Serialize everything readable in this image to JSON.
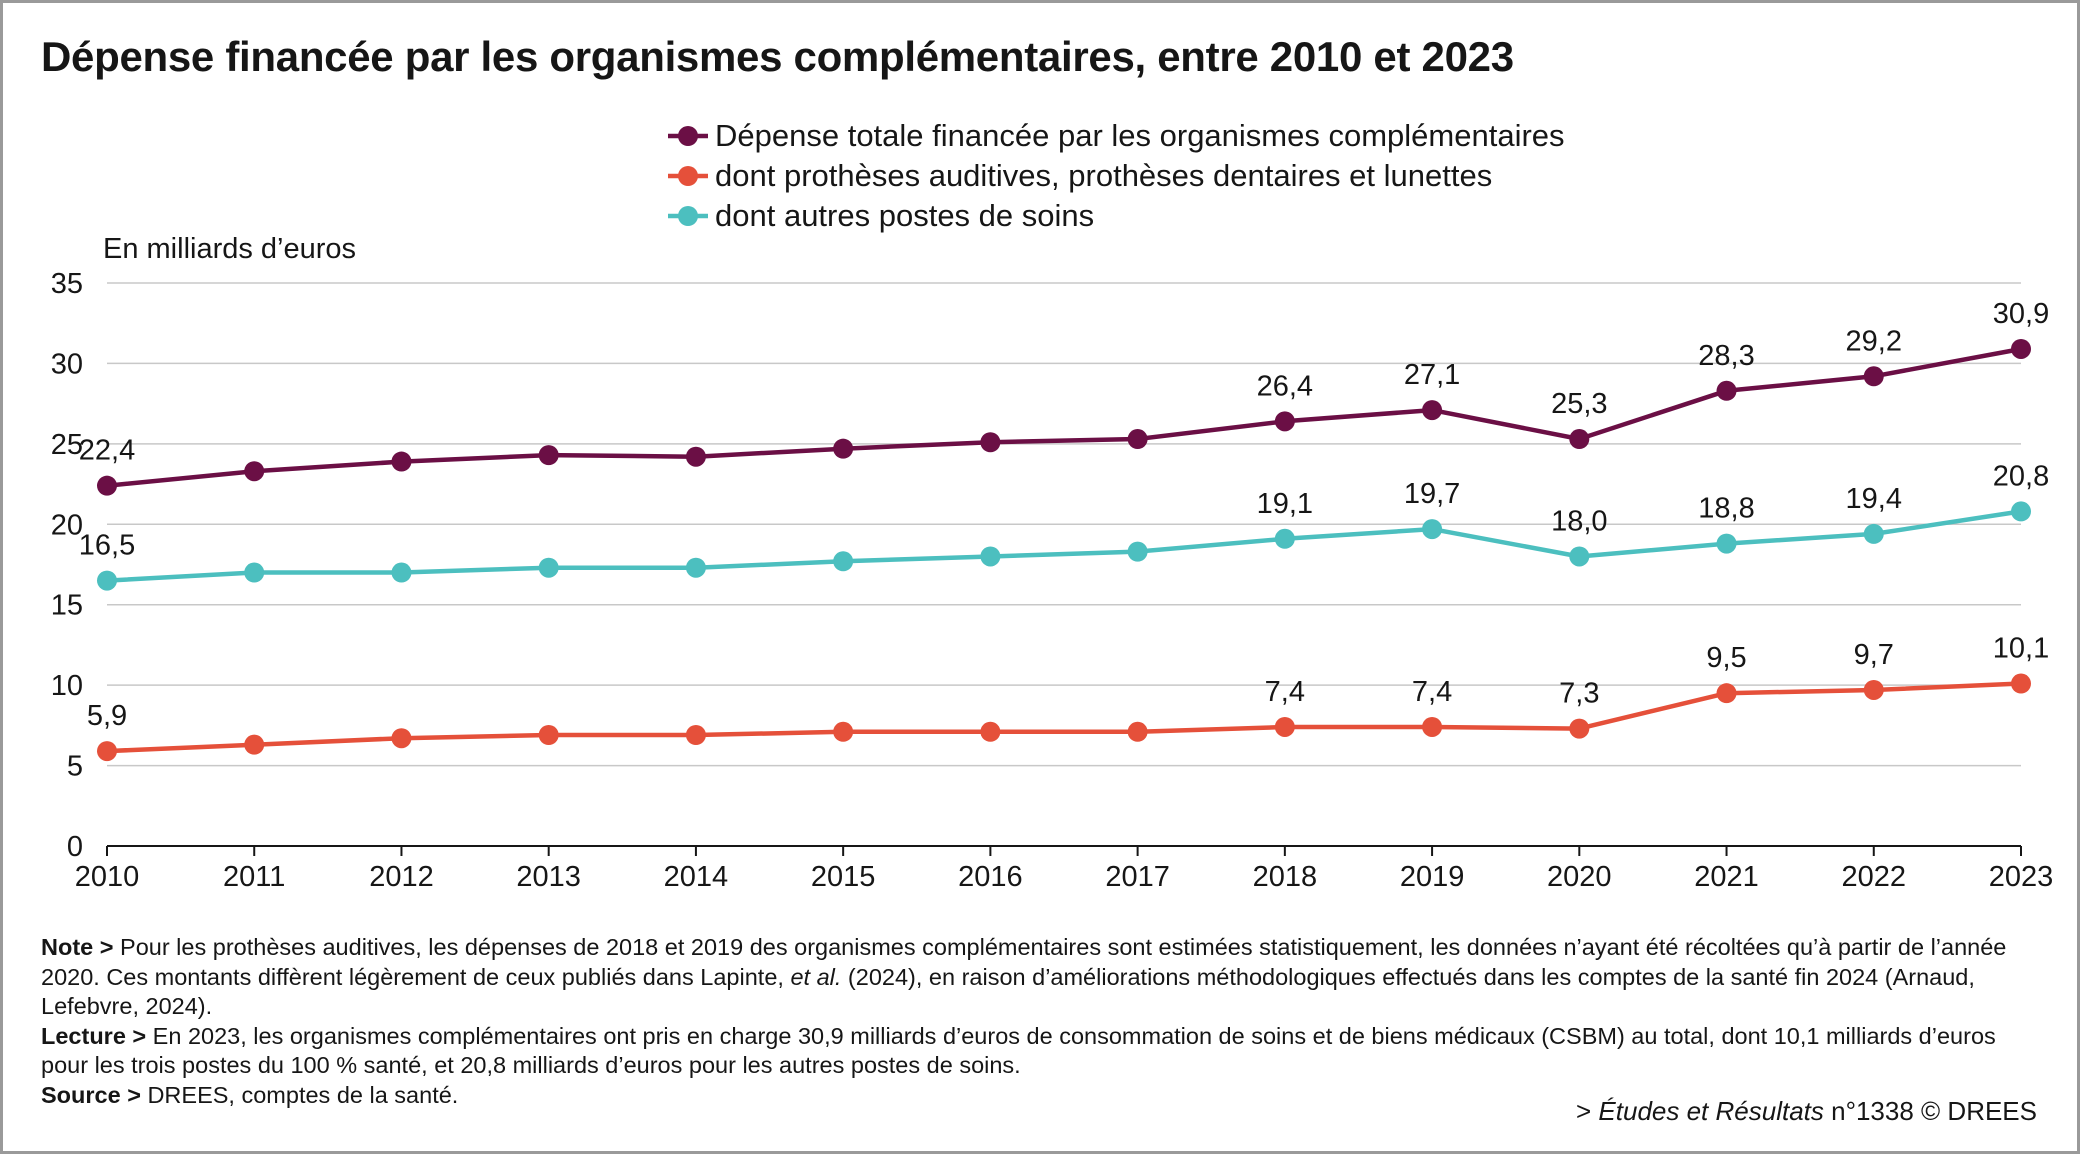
{
  "title": "Dépense financée par les organismes complémentaires, entre 2010 et 2023",
  "chart_data": {
    "type": "line",
    "title": "Dépense financée par les organismes complémentaires, entre 2010 et 2023",
    "ylabel": "En milliards d’euros",
    "xlabel": "",
    "ylim": [
      0,
      35
    ],
    "yticks": [
      0,
      5,
      10,
      15,
      20,
      25,
      30,
      35
    ],
    "grid": true,
    "legend_position": "top",
    "x": [
      "2010",
      "2011",
      "2012",
      "2013",
      "2014",
      "2015",
      "2016",
      "2017",
      "2018",
      "2019",
      "2020",
      "2021",
      "2022",
      "2023"
    ],
    "series": [
      {
        "name": "Dépense totale financée par les organismes complémentaires",
        "color": "#6b0f45",
        "values": [
          22.4,
          23.3,
          23.9,
          24.3,
          24.2,
          24.7,
          25.1,
          25.3,
          26.4,
          27.1,
          25.3,
          28.3,
          29.2,
          30.9
        ],
        "labels": [
          "22,4",
          "",
          "",
          "",
          "",
          "",
          "",
          "",
          "26,4",
          "27,1",
          "25,3",
          "28,3",
          "29,2",
          "30,9"
        ]
      },
      {
        "name": "dont prothèses auditives, prothèses dentaires et lunettes",
        "color": "#e5503a",
        "values": [
          5.9,
          6.3,
          6.7,
          6.9,
          6.9,
          7.1,
          7.1,
          7.1,
          7.4,
          7.4,
          7.3,
          9.5,
          9.7,
          10.1
        ],
        "labels": [
          "5,9",
          "",
          "",
          "",
          "",
          "",
          "",
          "",
          "7,4",
          "7,4",
          "7,3",
          "9,5",
          "9,7",
          "10,1"
        ]
      },
      {
        "name": "dont autres postes de soins",
        "color": "#4cbfbf",
        "values": [
          16.5,
          17.0,
          17.0,
          17.3,
          17.3,
          17.7,
          18.0,
          18.3,
          19.1,
          19.7,
          18.0,
          18.8,
          19.4,
          20.8
        ],
        "labels": [
          "16,5",
          "",
          "",
          "",
          "",
          "",
          "",
          "",
          "19,1",
          "19,7",
          "18,0",
          "18,8",
          "19,4",
          "20,8"
        ]
      }
    ]
  },
  "notes": {
    "note_label": "Note >",
    "note_text_1": " Pour les prothèses auditives, les dépenses de 2018 et 2019 des organismes complémentaires sont estimées statistiquement, les données n’ayant été récoltées qu’à partir de l’année 2020. Ces montants diffèrent légèrement de ceux publiés dans Lapinte, ",
    "note_italic": "et al.",
    "note_text_2": " (2024), en raison d’améliorations méthodologiques effectués dans les comptes de la santé fin 2024 (Arnaud, Lefebvre, 2024).",
    "lecture_label": "Lecture >",
    "lecture_text": " En 2023, les organismes complémentaires ont pris en charge 30,9 milliards d’euros de consommation de soins et de biens médicaux (CSBM) au total, dont 10,1 milliards d’euros pour les trois postes du 100 % santé, et 20,8 milliards d’euros pour les autres postes de soins.",
    "source_label": "Source >",
    "source_text": " DREES, comptes de la santé."
  },
  "credit": {
    "prefix": "> ",
    "publication": "Études et Résultats",
    "suffix": " n°1338 © DREES"
  }
}
